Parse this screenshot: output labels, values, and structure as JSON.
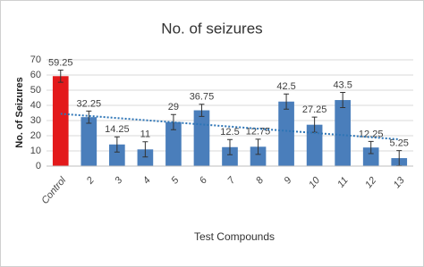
{
  "chart_data": {
    "type": "bar",
    "title": "No. of seizures",
    "x_label": "Test Compounds",
    "y_label": "No. of Seizures",
    "categories": [
      "Control",
      "2",
      "3",
      "4",
      "5",
      "6",
      "7",
      "8",
      "9",
      "10",
      "11",
      "12",
      "13"
    ],
    "values": [
      59.25,
      32.25,
      14.25,
      11,
      29,
      36.75,
      12.5,
      12.75,
      42.5,
      27.25,
      43.5,
      12.25,
      5.25
    ],
    "errors": [
      4,
      4,
      5,
      5,
      5,
      4,
      5,
      5,
      5,
      5,
      5,
      4,
      5
    ],
    "colors": [
      "#e3191b",
      "#4a7ebb",
      "#4a7ebb",
      "#4a7ebb",
      "#4a7ebb",
      "#4a7ebb",
      "#4a7ebb",
      "#4a7ebb",
      "#4a7ebb",
      "#4a7ebb",
      "#4a7ebb",
      "#4a7ebb",
      "#4a7ebb"
    ],
    "trendline": "linear",
    "trendline_color": "#2e75b6",
    "ylim": [
      0,
      70
    ],
    "yticks": [
      0,
      10,
      20,
      30,
      40,
      50,
      60,
      70
    ],
    "grid": true
  }
}
